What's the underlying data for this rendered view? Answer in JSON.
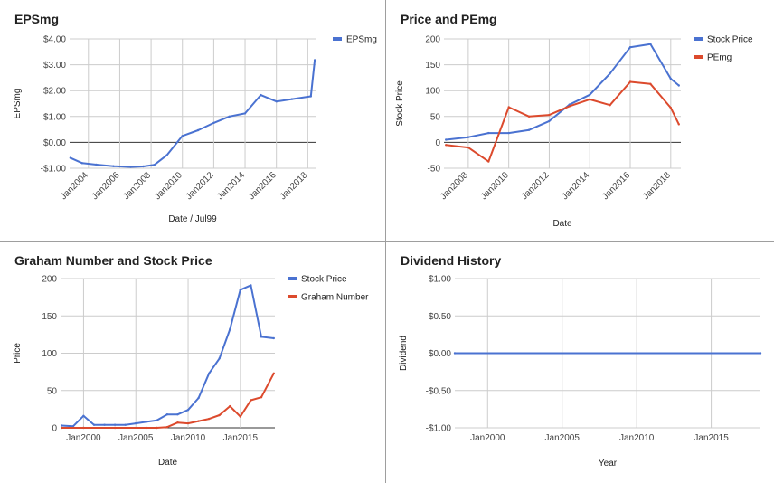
{
  "chart_data": [
    {
      "id": "epsmg",
      "type": "line",
      "title": "EPSmg",
      "xlabel": "Date / Jul99",
      "ylabel": "EPSmg",
      "xlim": [
        2002.8,
        2018.5
      ],
      "ylim": [
        -1,
        4
      ],
      "yticks": [
        -1,
        0,
        1,
        2,
        3,
        4
      ],
      "ytick_labels": [
        "-$1.00",
        "$0.00",
        "$1.00",
        "$2.00",
        "$3.00",
        "$4.00"
      ],
      "xticks": [
        2004,
        2006,
        2008,
        2010,
        2012,
        2014,
        2016,
        2018
      ],
      "xtick_labels": [
        "Jan2004",
        "Jan2006",
        "Jan2008",
        "Jan2010",
        "Jan2012",
        "Jan2014",
        "Jan2016",
        "Jan2018"
      ],
      "rotated_xticks": true,
      "legend": "top-right",
      "grid": true,
      "series": [
        {
          "name": "EPSmg",
          "color": "#4a72d1",
          "x": [
            2002.85,
            2003.6,
            2004.5,
            2005.6,
            2006.7,
            2007.5,
            2008.2,
            2009.0,
            2010.0,
            2011.0,
            2012.0,
            2013.0,
            2014.0,
            2015.0,
            2016.0,
            2017.0,
            2018.2,
            2018.45
          ],
          "y": [
            -0.6,
            -0.8,
            -0.86,
            -0.92,
            -0.95,
            -0.93,
            -0.87,
            -0.5,
            0.25,
            0.47,
            0.75,
            1.0,
            1.12,
            1.83,
            1.58,
            1.67,
            1.78,
            3.18
          ]
        }
      ]
    },
    {
      "id": "price-pemg",
      "type": "line",
      "title": "Price and PEmg",
      "xlabel": "Date",
      "ylabel": "Stock Price",
      "xlim": [
        2006.8,
        2018.5
      ],
      "ylim": [
        -50,
        200
      ],
      "yticks": [
        -50,
        0,
        50,
        100,
        150,
        200
      ],
      "ytick_labels": [
        "-50",
        "0",
        "50",
        "100",
        "150",
        "200"
      ],
      "xticks": [
        2008,
        2010,
        2012,
        2014,
        2016,
        2018
      ],
      "xtick_labels": [
        "Jan2008",
        "Jan2010",
        "Jan2012",
        "Jan2014",
        "Jan2016",
        "Jan2018"
      ],
      "rotated_xticks": true,
      "legend": "top-right",
      "grid": true,
      "series": [
        {
          "name": "Stock Price",
          "color": "#4a72d1",
          "x": [
            2006.9,
            2008.0,
            2009.0,
            2010.0,
            2011.0,
            2012.0,
            2013.0,
            2014.0,
            2015.0,
            2016.0,
            2017.0,
            2018.0,
            2018.4
          ],
          "y": [
            5,
            10,
            18,
            18,
            24,
            41,
            73,
            92,
            133,
            184,
            190,
            123,
            110
          ]
        },
        {
          "name": "PEmg",
          "color": "#dc4a2d",
          "x": [
            2006.9,
            2008.0,
            2009.0,
            2010.0,
            2011.0,
            2012.0,
            2013.0,
            2014.0,
            2015.0,
            2016.0,
            2017.0,
            2018.0,
            2018.4
          ],
          "y": [
            -5,
            -10,
            -37,
            68,
            50,
            53,
            70,
            83,
            72,
            117,
            113,
            67,
            35
          ]
        }
      ]
    },
    {
      "id": "graham",
      "type": "line",
      "title": "Graham Number and Stock Price",
      "xlabel": "Date",
      "ylabel": "Price",
      "xlim": [
        1997.8,
        2018.3
      ],
      "ylim": [
        0,
        200
      ],
      "yticks": [
        0,
        50,
        100,
        150,
        200
      ],
      "ytick_labels": [
        "0",
        "50",
        "100",
        "150",
        "200"
      ],
      "xticks": [
        2000,
        2005,
        2010,
        2015
      ],
      "xtick_labels": [
        "Jan2000",
        "Jan2005",
        "Jan2010",
        "Jan2015"
      ],
      "rotated_xticks": false,
      "legend": "top-right",
      "grid": true,
      "series": [
        {
          "name": "Stock Price",
          "color": "#4a72d1",
          "x": [
            1997.9,
            1999.0,
            2000.0,
            2001.0,
            2002.0,
            2003.0,
            2004.0,
            2005.0,
            2006.0,
            2007.0,
            2008.0,
            2009.0,
            2010.0,
            2011.0,
            2012.0,
            2013.0,
            2014.0,
            2015.0,
            2016.0,
            2017.0,
            2018.2
          ],
          "y": [
            3,
            2,
            16,
            4,
            4,
            4,
            4,
            6,
            8,
            10,
            18,
            18,
            24,
            40,
            73,
            93,
            132,
            185,
            191,
            122,
            120
          ]
        },
        {
          "name": "Graham Number",
          "color": "#dc4a2d",
          "x": [
            1997.9,
            2000.0,
            2003.0,
            2006.0,
            2007.0,
            2008.0,
            2009.0,
            2010.0,
            2011.0,
            2012.0,
            2013.0,
            2014.0,
            2015.0,
            2016.0,
            2017.0,
            2018.2
          ],
          "y": [
            0,
            0,
            0,
            0,
            0,
            1,
            7,
            6,
            9,
            12,
            17,
            29,
            15,
            37,
            41,
            73
          ]
        }
      ]
    },
    {
      "id": "dividend",
      "type": "line",
      "title": "Dividend History",
      "xlabel": "Year",
      "ylabel": "Dividend",
      "xlim": [
        1997.8,
        2018.3
      ],
      "ylim": [
        -1,
        1
      ],
      "yticks": [
        -1,
        -0.5,
        0,
        0.5,
        1
      ],
      "ytick_labels": [
        "-$1.00",
        "-$0.50",
        "$0.00",
        "$0.50",
        "$1.00"
      ],
      "xticks": [
        2000,
        2005,
        2010,
        2015
      ],
      "xtick_labels": [
        "Jan2000",
        "Jan2005",
        "Jan2010",
        "Jan2015"
      ],
      "rotated_xticks": false,
      "legend": "none",
      "grid": true,
      "series": [
        {
          "name": "",
          "color": "#4a72d1",
          "x": [
            1997.8,
            2018.3
          ],
          "y": [
            0,
            0
          ]
        }
      ]
    }
  ]
}
